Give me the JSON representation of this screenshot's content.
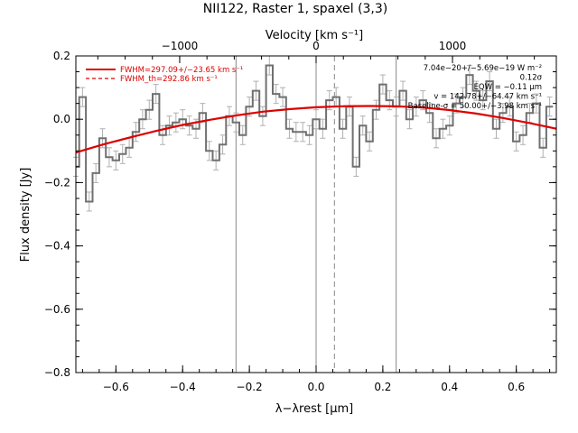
{
  "chart_data": {
    "type": "line",
    "title": "NII122, Raster 1, spaxel (3,3)",
    "top_axis": {
      "label": "Velocity [km s⁻¹]",
      "ticks": [
        {
          "value": -1000,
          "label": "−1000"
        },
        {
          "value": 0,
          "label": "0"
        },
        {
          "value": 1000,
          "label": "1000"
        }
      ]
    },
    "xlabel": "λ−λrest [μm]",
    "ylabel": "Flux density [Jy]",
    "xlim": [
      -0.72,
      0.72
    ],
    "ylim": [
      -0.8,
      0.2
    ],
    "xticks": [
      -0.6,
      -0.4,
      -0.2,
      0.0,
      0.2,
      0.4,
      0.6
    ],
    "xtick_labels": [
      "−0.6",
      "−0.4",
      "−0.2",
      "0.0",
      "0.2",
      "0.4",
      "0.6"
    ],
    "yticks": [
      -0.8,
      -0.6,
      -0.4,
      -0.2,
      0.0,
      0.2
    ],
    "ytick_labels": [
      "−0.8",
      "−0.6",
      "−0.4",
      "−0.2",
      "0.0",
      "0.2"
    ],
    "vertical_lines": [
      {
        "x": -0.24,
        "style": "solid"
      },
      {
        "x": 0.0,
        "style": "solid"
      },
      {
        "x": 0.24,
        "style": "solid"
      },
      {
        "x": 0.055,
        "style": "dashed"
      }
    ],
    "legend": {
      "placement": "top-left",
      "entries": [
        {
          "label": "FWHM=297.09+/−23.65 km s⁻¹",
          "style": "solid",
          "color": "#dd0000"
        },
        {
          "label": "FWHM_th=292.86 km s⁻¹",
          "style": "dashed",
          "color": "#dd0000"
        }
      ]
    },
    "annotations": [
      "7.04e−20+/−5.69e−19 W m⁻²",
      "0.12σ",
      "EQW = −0.11 μm",
      "v = 142.78+/−64.47 km s⁻¹",
      "Baseline-σ = 50.00+/−3.98 km s⁻¹"
    ],
    "series": [
      {
        "style": "step",
        "color": "#707070",
        "x": [
          -0.72,
          -0.7,
          -0.68,
          -0.66,
          -0.64,
          -0.62,
          -0.6,
          -0.58,
          -0.56,
          -0.54,
          -0.52,
          -0.5,
          -0.48,
          -0.46,
          -0.44,
          -0.42,
          -0.4,
          -0.38,
          -0.36,
          -0.34,
          -0.32,
          -0.3,
          -0.28,
          -0.26,
          -0.24,
          -0.22,
          -0.2,
          -0.18,
          -0.16,
          -0.14,
          -0.12,
          -0.1,
          -0.08,
          -0.06,
          -0.04,
          -0.02,
          0.0,
          0.02,
          0.04,
          0.06,
          0.08,
          0.1,
          0.12,
          0.14,
          0.16,
          0.18,
          0.2,
          0.22,
          0.24,
          0.26,
          0.28,
          0.3,
          0.32,
          0.34,
          0.36,
          0.38,
          0.4,
          0.42,
          0.44,
          0.46,
          0.48,
          0.5,
          0.52,
          0.54,
          0.56,
          0.58,
          0.6,
          0.62,
          0.64,
          0.66,
          0.68,
          0.7
        ],
        "values": [
          -0.15,
          0.07,
          -0.26,
          -0.17,
          -0.06,
          -0.12,
          -0.13,
          -0.11,
          -0.09,
          -0.04,
          0.0,
          0.03,
          0.08,
          -0.05,
          -0.02,
          -0.01,
          0.0,
          -0.02,
          -0.03,
          0.02,
          -0.1,
          -0.13,
          -0.08,
          0.01,
          -0.01,
          -0.05,
          0.04,
          0.09,
          0.01,
          0.17,
          0.08,
          0.07,
          -0.03,
          -0.04,
          -0.04,
          -0.05,
          0.0,
          -0.03,
          0.06,
          0.07,
          -0.03,
          0.04,
          -0.15,
          -0.02,
          -0.07,
          0.03,
          0.11,
          0.06,
          0.04,
          0.09,
          0.0,
          0.04,
          0.06,
          0.02,
          -0.06,
          -0.03,
          -0.02,
          0.05,
          0.07,
          0.14,
          0.09,
          0.06,
          0.12,
          -0.03,
          0.02,
          0.04,
          -0.07,
          -0.05,
          0.02,
          0.05,
          -0.09,
          0.04
        ],
        "errors": [
          0.03,
          0.03,
          0.03,
          0.03,
          0.03,
          0.03,
          0.03,
          0.03,
          0.03,
          0.03,
          0.03,
          0.03,
          0.03,
          0.03,
          0.03,
          0.03,
          0.03,
          0.03,
          0.03,
          0.03,
          0.03,
          0.03,
          0.03,
          0.03,
          0.03,
          0.03,
          0.03,
          0.03,
          0.03,
          0.03,
          0.03,
          0.03,
          0.03,
          0.03,
          0.03,
          0.03,
          0.03,
          0.03,
          0.03,
          0.03,
          0.03,
          0.03,
          0.03,
          0.03,
          0.03,
          0.03,
          0.03,
          0.03,
          0.03,
          0.03,
          0.03,
          0.03,
          0.03,
          0.03,
          0.03,
          0.03,
          0.03,
          0.03,
          0.03,
          0.03,
          0.03,
          0.03,
          0.03,
          0.03,
          0.03,
          0.03,
          0.03,
          0.03,
          0.03,
          0.03,
          0.03,
          0.03
        ]
      },
      {
        "style": "smooth",
        "color": "#dd0000",
        "x": [
          -0.72,
          -0.64,
          -0.56,
          -0.48,
          -0.4,
          -0.32,
          -0.24,
          -0.16,
          -0.08,
          0.0,
          0.08,
          0.16,
          0.24,
          0.32,
          0.4,
          0.48,
          0.56,
          0.64,
          0.72
        ],
        "values": [
          -0.105,
          -0.08,
          -0.058,
          -0.037,
          -0.018,
          -0.002,
          0.012,
          0.024,
          0.032,
          0.038,
          0.041,
          0.042,
          0.041,
          0.037,
          0.029,
          0.018,
          0.004,
          -0.012,
          -0.03
        ]
      }
    ]
  }
}
